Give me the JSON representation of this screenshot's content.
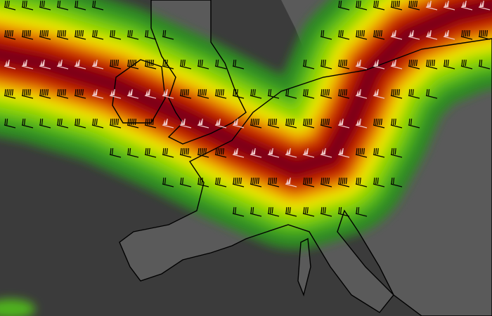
{
  "map": {
    "colors": {
      "sea": "#3b3b3b",
      "land": "#5a5a5a",
      "border": "#000000",
      "bands": [
        "#2f8a22",
        "#4fb21e",
        "#8fd400",
        "#e6e600",
        "#f0a000",
        "#d23c00",
        "#b00f00",
        "#7a0016"
      ],
      "barb_dark": "#000000",
      "barb_light": "#f0c8c8"
    },
    "layers": [
      "wind-speed-shading",
      "wind-barbs",
      "coastlines",
      "country-borders"
    ]
  }
}
